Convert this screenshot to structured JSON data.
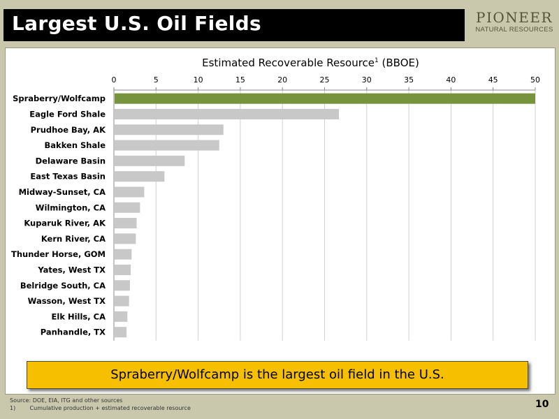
{
  "slide": {
    "title": "Largest U.S. Oil Fields",
    "logo": {
      "line1": "PIONEER",
      "line2": "NATURAL RESOURCES"
    },
    "callout": "Spraberry/Wolfcamp is the largest oil field in the U.S.",
    "footnotes": {
      "source": "Source: DOE, EIA, ITG and other sources",
      "note_number": "1)",
      "note_text": "Cumulative production + estimated recoverable resource"
    },
    "page_number": "10"
  },
  "colors": {
    "highlight_bar": "#77933c",
    "bar": "#c8c8c8",
    "callout": "#f6c000",
    "title_bar": "#000000",
    "background": "#c9c8ad"
  },
  "chart_data": {
    "type": "bar",
    "orientation": "horizontal",
    "title": "Estimated Recoverable Resource",
    "title_superscript": "1",
    "title_suffix": "(BBOE)",
    "xlim": [
      0,
      50
    ],
    "xticks": [
      0,
      5,
      10,
      15,
      20,
      25,
      30,
      35,
      40,
      45,
      50
    ],
    "x_axis_position": "top",
    "grid": true,
    "categories": [
      "Spraberry/Wolfcamp",
      "Eagle Ford Shale",
      "Prudhoe Bay, AK",
      "Bakken Shale",
      "Delaware Basin",
      "East Texas Basin",
      "Midway-Sunset, CA",
      "Wilmington, CA",
      "Kuparuk River, AK",
      "Kern River, CA",
      "Thunder Horse, GOM",
      "Yates, West TX",
      "Belridge South, CA",
      "Wasson, West TX",
      "Elk Hills, CA",
      "Panhandle, TX"
    ],
    "values": [
      50,
      26.7,
      13,
      12.5,
      8.4,
      6,
      3.6,
      3.1,
      2.7,
      2.6,
      2.1,
      2.0,
      1.9,
      1.8,
      1.6,
      1.5
    ],
    "highlight_index": 0
  }
}
